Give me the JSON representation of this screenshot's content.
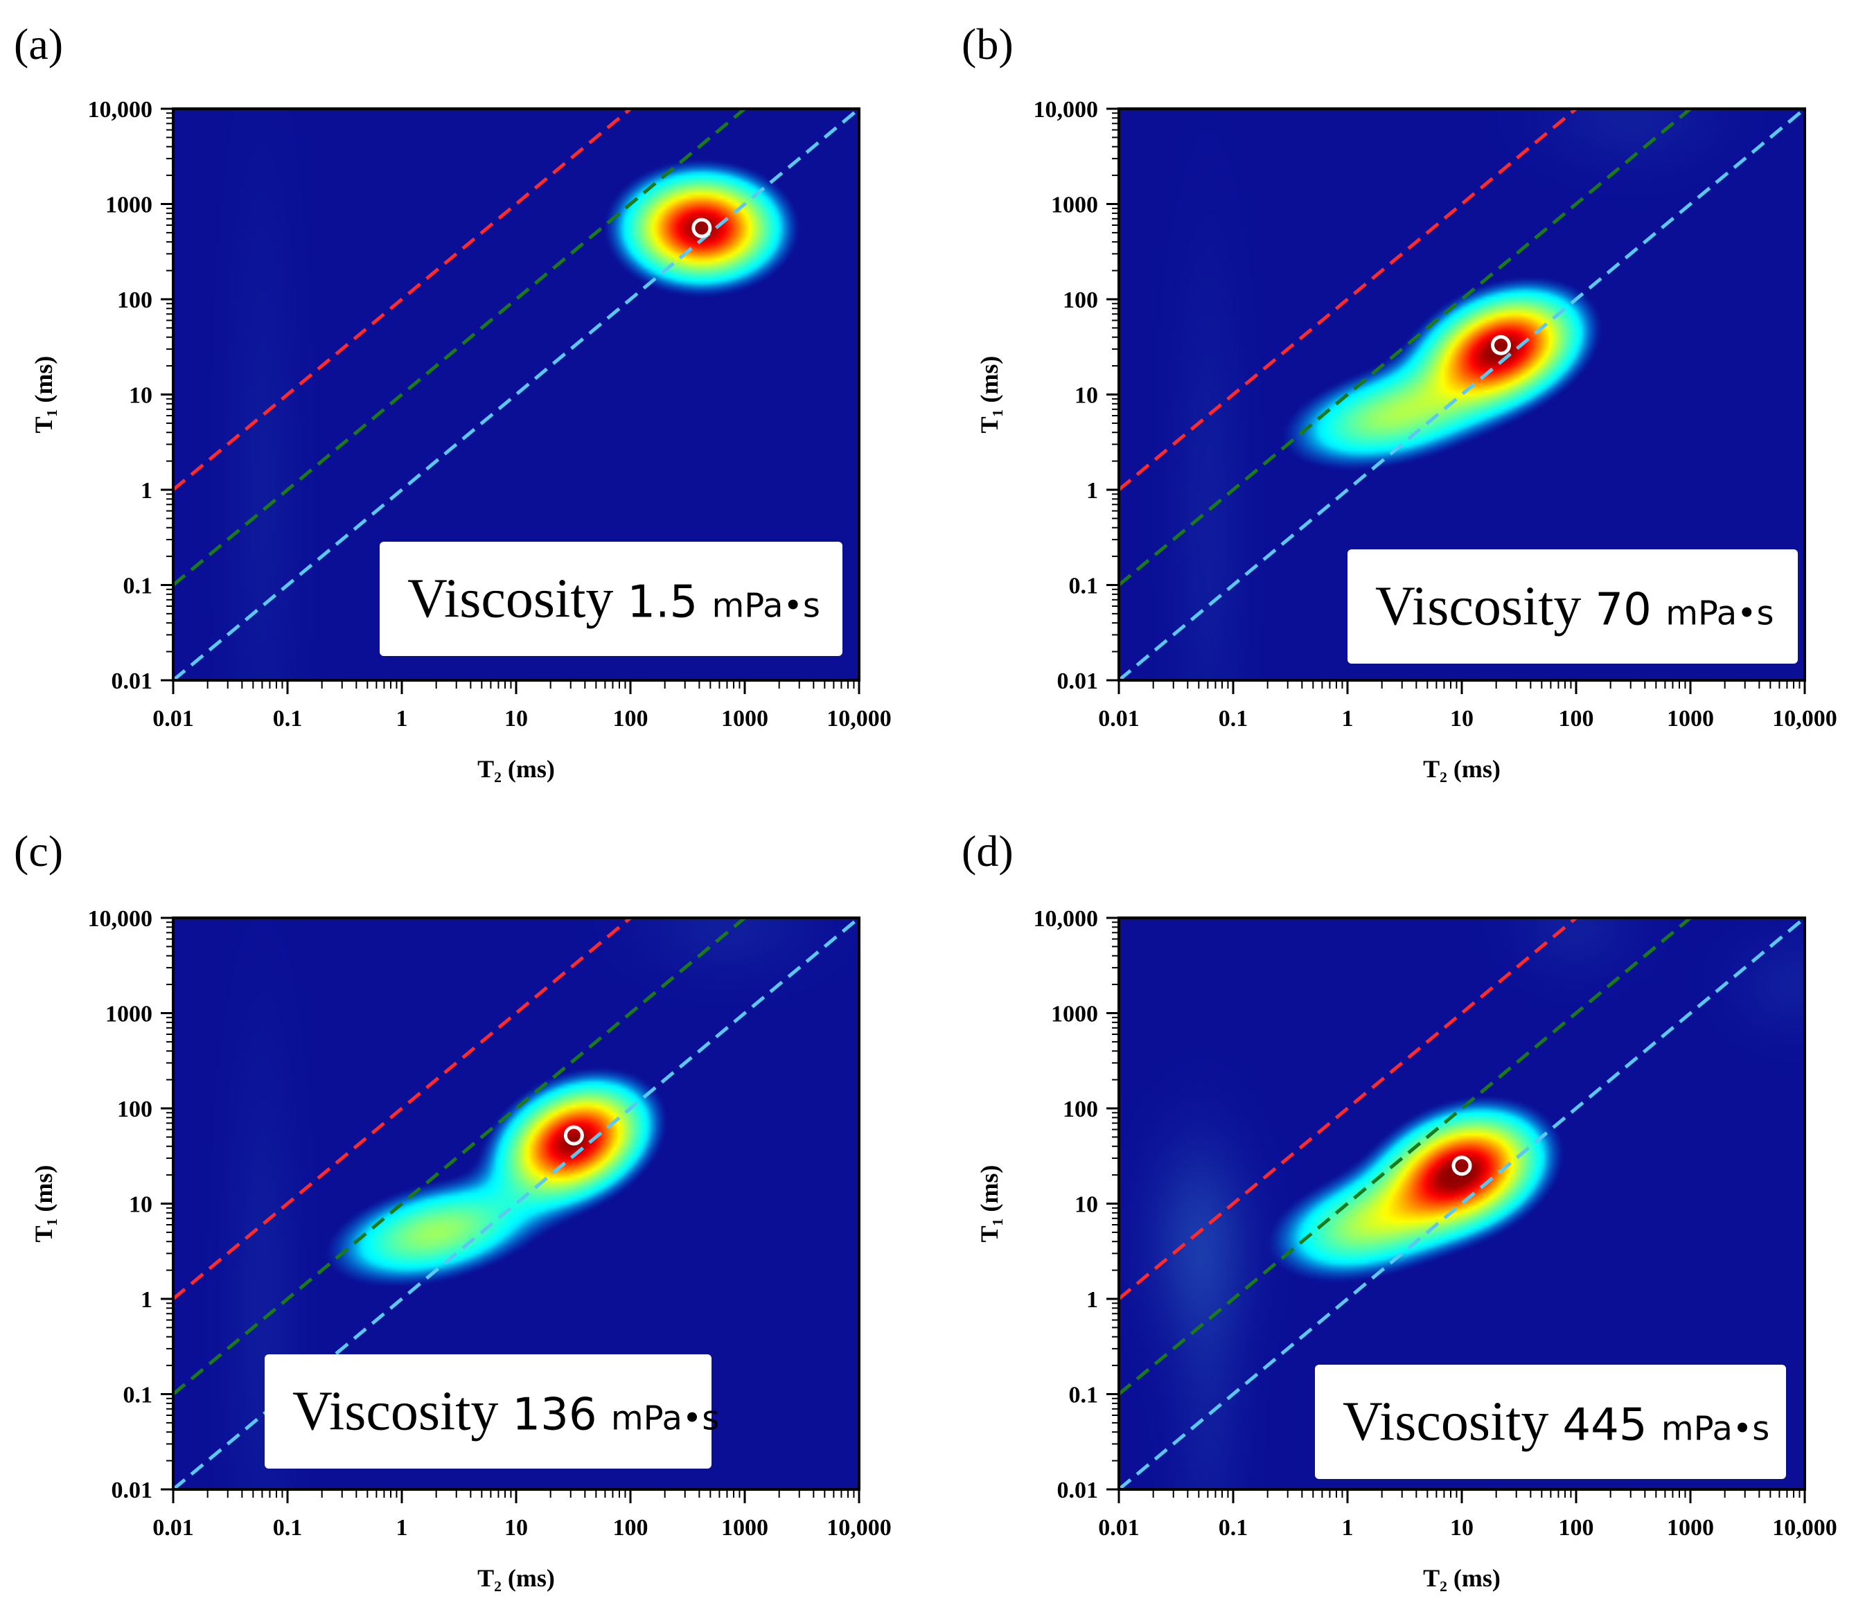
{
  "figure": {
    "panels_count": 4
  },
  "colors": {
    "background_map": "#0a0f96",
    "line_red": "#ff2a2a",
    "line_green": "#1a7a1a",
    "line_cyan": "#5ac8f0",
    "marker": "#ffffff"
  },
  "chart_data": [
    {
      "type": "heatmap",
      "panel_label": "(a)",
      "xlabel": "T₂ (ms)",
      "ylabel": "T₁ (ms)",
      "x_scale": "log",
      "y_scale": "log",
      "xlim": [
        0.01,
        10000
      ],
      "ylim": [
        0.01,
        10000
      ],
      "x_ticks": [
        "0.01",
        "0.1",
        "1",
        "10",
        "100",
        "1000",
        "10,000"
      ],
      "y_ticks": [
        "0.01",
        "0.1",
        "1",
        "10",
        "100",
        "1000",
        "10,000"
      ],
      "reference_lines": [
        {
          "name": "T1/T2 = 100",
          "color": "red",
          "ratio": 100
        },
        {
          "name": "T1/T2 = 10",
          "color": "green",
          "ratio": 10
        },
        {
          "name": "T1/T2 = 1",
          "color": "cyan",
          "ratio": 1
        }
      ],
      "peak": {
        "t2": 420,
        "t1": 560
      },
      "blobs": [
        {
          "t2": 420,
          "t1": 560,
          "spread_x": 0.38,
          "spread_y": 0.32,
          "intensity": 1.0,
          "tilt": 0
        }
      ],
      "faint_regions": [
        {
          "t2": 0.06,
          "t1": 1.0,
          "spread_x": 0.22,
          "spread_y": 2.2,
          "intensity": 0.08
        }
      ],
      "viscosity_label": {
        "word": "Viscosity",
        "value": "1.5",
        "unit": "mPa•s",
        "position": "bottom-right"
      }
    },
    {
      "type": "heatmap",
      "panel_label": "(b)",
      "xlabel": "T₂ (ms)",
      "ylabel": "T₁ (ms)",
      "x_scale": "log",
      "y_scale": "log",
      "xlim": [
        0.01,
        10000
      ],
      "ylim": [
        0.01,
        10000
      ],
      "x_ticks": [
        "0.01",
        "0.1",
        "1",
        "10",
        "100",
        "1000",
        "10,000"
      ],
      "y_ticks": [
        "0.01",
        "0.1",
        "1",
        "10",
        "100",
        "1000",
        "10,000"
      ],
      "reference_lines": [
        {
          "name": "T1/T2 = 100",
          "color": "red",
          "ratio": 100
        },
        {
          "name": "T1/T2 = 10",
          "color": "green",
          "ratio": 10
        },
        {
          "name": "T1/T2 = 1",
          "color": "cyan",
          "ratio": 1
        }
      ],
      "peak": {
        "t2": 22,
        "t1": 33
      },
      "blobs": [
        {
          "t2": 22,
          "t1": 30,
          "spread_x": 0.42,
          "spread_y": 0.3,
          "intensity": 1.0,
          "tilt": 0.55
        },
        {
          "t2": 2.5,
          "t1": 6,
          "spread_x": 0.55,
          "spread_y": 0.28,
          "intensity": 0.42,
          "tilt": 0.3
        }
      ],
      "faint_regions": [
        {
          "t2": 0.06,
          "t1": 0.5,
          "spread_x": 0.22,
          "spread_y": 1.8,
          "intensity": 0.1
        },
        {
          "t2": 300,
          "t1": 8000,
          "spread_x": 0.5,
          "spread_y": 0.35,
          "intensity": 0.12
        }
      ],
      "viscosity_label": {
        "word": "Viscosity",
        "value": "70",
        "unit": "mPa•s",
        "position": "bottom-right"
      }
    },
    {
      "type": "heatmap",
      "panel_label": "(c)",
      "xlabel": "T₂ (ms)",
      "ylabel": "T₁ (ms)",
      "x_scale": "log",
      "y_scale": "log",
      "xlim": [
        0.01,
        10000
      ],
      "ylim": [
        0.01,
        10000
      ],
      "x_ticks": [
        "0.01",
        "0.1",
        "1",
        "10",
        "100",
        "1000",
        "10,000"
      ],
      "y_ticks": [
        "0.01",
        "0.1",
        "1",
        "10",
        "100",
        "1000",
        "10,000"
      ],
      "reference_lines": [
        {
          "name": "T1/T2 = 100",
          "color": "red",
          "ratio": 100
        },
        {
          "name": "T1/T2 = 10",
          "color": "green",
          "ratio": 10
        },
        {
          "name": "T1/T2 = 1",
          "color": "cyan",
          "ratio": 1
        }
      ],
      "peak": {
        "t2": 32,
        "t1": 52
      },
      "blobs": [
        {
          "t2": 32,
          "t1": 45,
          "spread_x": 0.4,
          "spread_y": 0.3,
          "intensity": 1.0,
          "tilt": 0.7
        },
        {
          "t2": 2.0,
          "t1": 5,
          "spread_x": 0.55,
          "spread_y": 0.28,
          "intensity": 0.42,
          "tilt": 0.3
        }
      ],
      "faint_regions": [
        {
          "t2": 0.06,
          "t1": 1.0,
          "spread_x": 0.22,
          "spread_y": 1.8,
          "intensity": 0.1
        },
        {
          "t2": 700,
          "t1": 8000,
          "spread_x": 0.5,
          "spread_y": 0.35,
          "intensity": 0.12
        }
      ],
      "viscosity_label": {
        "word": "Viscosity",
        "value": "136",
        "unit": "mPa•s",
        "position": "bottom-left"
      }
    },
    {
      "type": "heatmap",
      "panel_label": "(d)",
      "xlabel": "T₂ (ms)",
      "ylabel": "T₁ (ms)",
      "x_scale": "log",
      "y_scale": "log",
      "xlim": [
        0.01,
        10000
      ],
      "ylim": [
        0.01,
        10000
      ],
      "x_ticks": [
        "0.01",
        "0.1",
        "1",
        "10",
        "100",
        "1000",
        "10,000"
      ],
      "y_ticks": [
        "0.01",
        "0.1",
        "1",
        "10",
        "100",
        "1000",
        "10,000"
      ],
      "reference_lines": [
        {
          "name": "T1/T2 = 100",
          "color": "red",
          "ratio": 100
        },
        {
          "name": "T1/T2 = 10",
          "color": "green",
          "ratio": 10
        },
        {
          "name": "T1/T2 = 1",
          "color": "cyan",
          "ratio": 1
        }
      ],
      "peak": {
        "t2": 10,
        "t1": 25
      },
      "blobs": [
        {
          "t2": 10,
          "t1": 22,
          "spread_x": 0.42,
          "spread_y": 0.32,
          "intensity": 1.0,
          "tilt": 0.55
        },
        {
          "t2": 1.5,
          "t1": 6,
          "spread_x": 0.5,
          "spread_y": 0.3,
          "intensity": 0.42,
          "tilt": 0.35
        }
      ],
      "faint_regions": [
        {
          "t2": 0.05,
          "t1": 4,
          "spread_x": 0.3,
          "spread_y": 0.7,
          "intensity": 0.3
        },
        {
          "t2": 0.06,
          "t1": 0.1,
          "spread_x": 0.22,
          "spread_y": 1.2,
          "intensity": 0.12
        },
        {
          "t2": 100,
          "t1": 8000,
          "spread_x": 0.35,
          "spread_y": 0.35,
          "intensity": 0.12
        },
        {
          "t2": 8000,
          "t1": 2000,
          "spread_x": 0.35,
          "spread_y": 0.35,
          "intensity": 0.12
        }
      ],
      "viscosity_label": {
        "word": "Viscosity",
        "value": "445",
        "unit": "mPa•s",
        "position": "bottom-right"
      }
    }
  ]
}
